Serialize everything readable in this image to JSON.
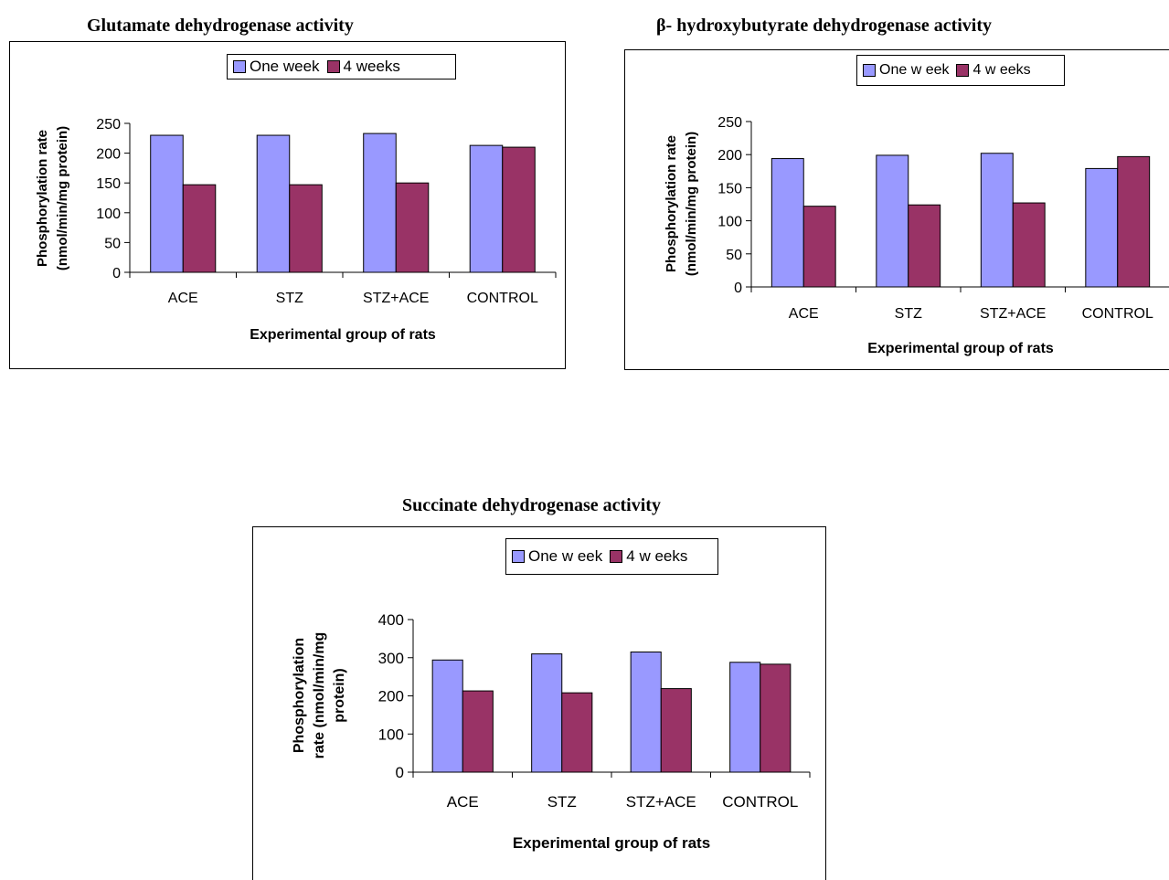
{
  "colors": {
    "one_week": "#9999FF",
    "four_weeks": "#993366",
    "axis": "#000000"
  },
  "chart_data": [
    {
      "type": "bar",
      "title": "Glutamate dehydrogenase activity",
      "xlabel": "Experimental group of rats",
      "ylabel": [
        "Phosphorylation rate",
        "(nmol/min/mg protein)"
      ],
      "categories": [
        "ACE",
        "STZ",
        "STZ+ACE",
        "CONTROL"
      ],
      "series": [
        {
          "name": "One week",
          "values": [
            230,
            230,
            233,
            213
          ]
        },
        {
          "name": "4 weeks",
          "values": [
            147,
            147,
            150,
            210
          ]
        }
      ],
      "ylim": [
        0,
        250
      ],
      "yticks": [
        "0",
        "50",
        "100",
        "150",
        "200",
        "250"
      ],
      "legend_position": "top-right",
      "grid": false
    },
    {
      "type": "bar",
      "title": "β- hydroxybutyrate dehydrogenase activity",
      "xlabel": "Experimental group of rats",
      "ylabel": [
        "Phosphorylation rate",
        "(nmol/min/mg protein)"
      ],
      "categories": [
        "ACE",
        "STZ",
        "STZ+ACE",
        "CONTROL"
      ],
      "series": [
        {
          "name": "One w eek",
          "values": [
            194,
            199,
            202,
            179
          ]
        },
        {
          "name": "4 w eeks",
          "values": [
            122,
            124,
            127,
            197
          ]
        }
      ],
      "ylim": [
        0,
        250
      ],
      "yticks": [
        "0",
        "50",
        "100",
        "150",
        "200",
        "250"
      ],
      "legend_position": "top-right",
      "grid": false
    },
    {
      "type": "bar",
      "title": "Succinate dehydrogenase activity",
      "xlabel": "Experimental group of rats",
      "ylabel": [
        "Phosphorylation",
        "rate (nmol/min/mg",
        "protein)"
      ],
      "categories": [
        "ACE",
        "STZ",
        "STZ+ACE",
        "CONTROL"
      ],
      "series": [
        {
          "name": "One w eek",
          "values": [
            294,
            310,
            315,
            288
          ]
        },
        {
          "name": "4 w eeks",
          "values": [
            213,
            208,
            219,
            283
          ]
        }
      ],
      "ylim": [
        0,
        400
      ],
      "yticks": [
        "0",
        "100",
        "200",
        "300",
        "400"
      ],
      "legend_position": "top-right",
      "grid": false
    }
  ]
}
